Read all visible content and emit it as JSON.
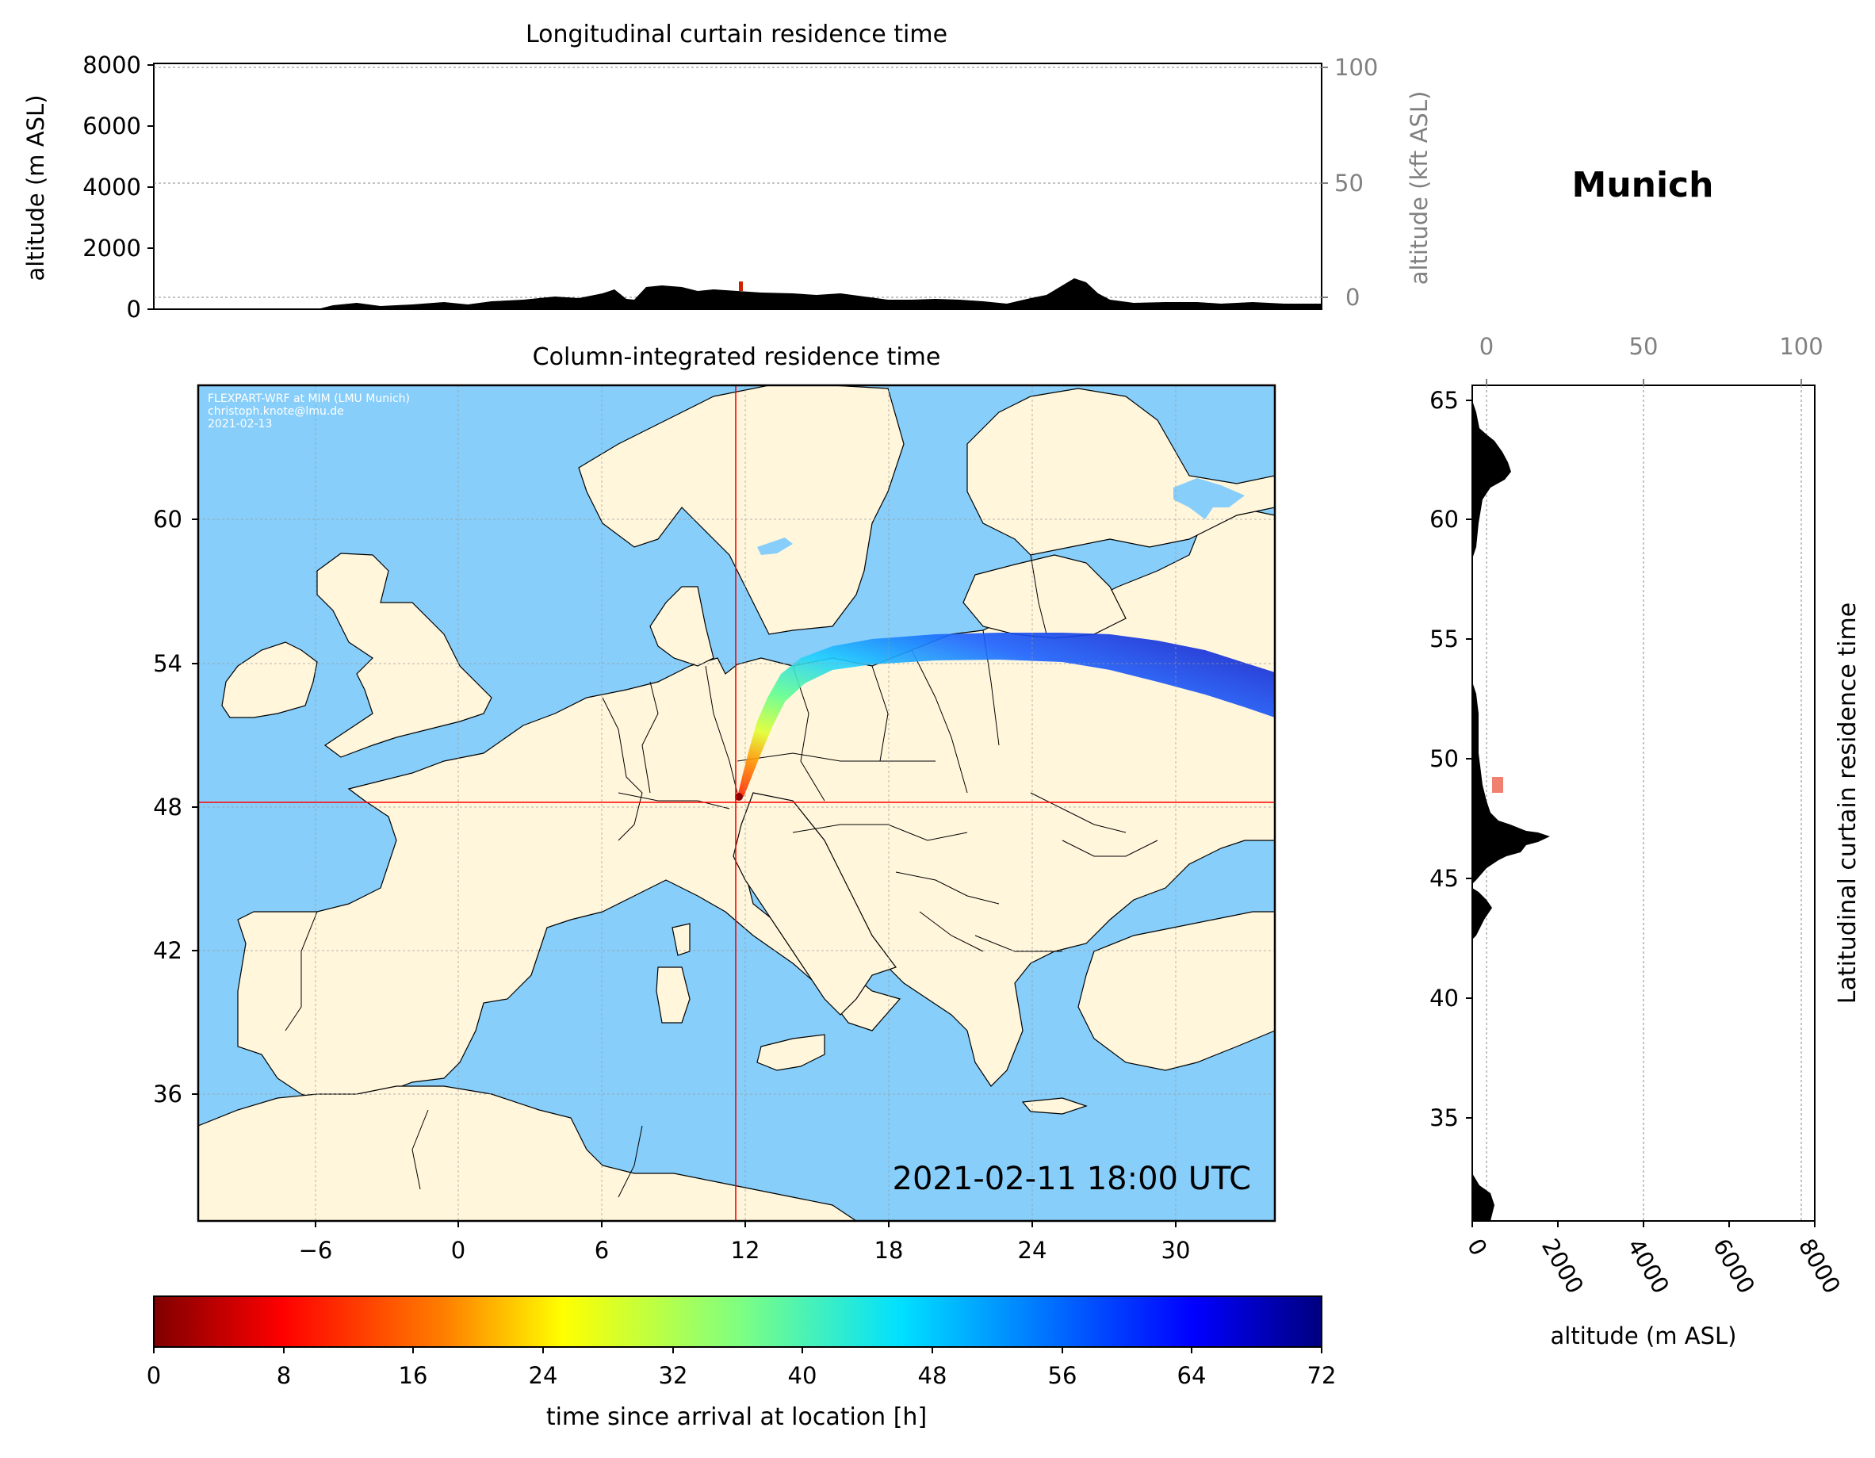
{
  "location_title": "Munich",
  "timestamp": "2021-02-11 18:00 UTC",
  "credits": [
    "FLEXPART-WRF at MIM (LMU Munich)",
    "christoph.knote@lmu.de",
    "2021-02-13"
  ],
  "colors": {
    "ocean": "#87CEFA",
    "land": "#FFF6DC",
    "crosshair": "#FF0000",
    "terrain": "#000000"
  },
  "top_panel": {
    "title": "Longitudinal curtain residence time",
    "left_axis_label": "altitude (m ASL)",
    "right_axis_label": "altitude (kft ASL)",
    "left_ticks": [
      "0",
      "2000",
      "4000",
      "6000",
      "8000"
    ],
    "right_ticks": [
      "0",
      "50",
      "100"
    ]
  },
  "map_panel": {
    "title": "Column-integrated residence time",
    "x_ticks": [
      "−6",
      "0",
      "6",
      "12",
      "18",
      "24",
      "30"
    ],
    "y_ticks": [
      "36",
      "42",
      "48",
      "54",
      "60"
    ],
    "crosshair_lon": 11.6,
    "crosshair_lat": 48.2
  },
  "right_panel": {
    "side_title": "Latitudinal curtain residence time",
    "x_label": "altitude (m ASL)",
    "bottom_ticks": [
      "0",
      "2000",
      "4000",
      "6000",
      "8000"
    ],
    "top_ticks": [
      "0",
      "50",
      "100"
    ],
    "y_ticks": [
      "35",
      "40",
      "45",
      "50",
      "55",
      "60",
      "65"
    ]
  },
  "colorbar": {
    "label": "time since arrival at location [h]",
    "ticks": [
      "0",
      "8",
      "16",
      "24",
      "32",
      "40",
      "48",
      "56",
      "64",
      "72"
    ],
    "range": [
      0,
      72
    ],
    "colormap": "jet_r"
  }
}
